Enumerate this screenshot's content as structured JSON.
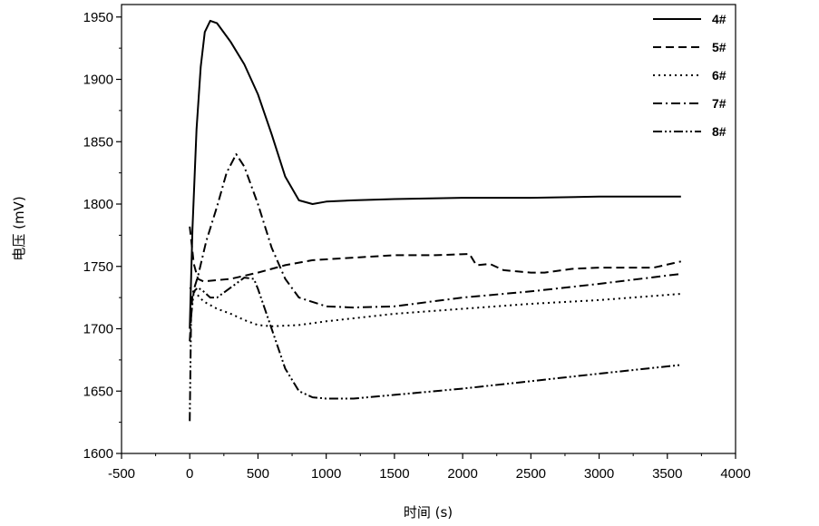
{
  "chart_data": {
    "type": "line",
    "xlabel": "时间 (s)",
    "ylabel": "电压 (mV)",
    "xlim": [
      -500,
      4000
    ],
    "ylim": [
      1600,
      1960
    ],
    "x_ticks": [
      -500,
      0,
      500,
      1000,
      1500,
      2000,
      2500,
      3000,
      3500,
      4000
    ],
    "y_ticks": [
      1600,
      1650,
      1700,
      1750,
      1800,
      1850,
      1900,
      1950
    ],
    "grid": false,
    "legend_position": "top-right",
    "series": [
      {
        "name": "4#",
        "dash": "solid",
        "points": [
          [
            0,
            1700
          ],
          [
            20,
            1780
          ],
          [
            50,
            1860
          ],
          [
            80,
            1910
          ],
          [
            110,
            1938
          ],
          [
            150,
            1947
          ],
          [
            200,
            1945
          ],
          [
            300,
            1930
          ],
          [
            400,
            1912
          ],
          [
            500,
            1888
          ],
          [
            600,
            1856
          ],
          [
            700,
            1822
          ],
          [
            800,
            1803
          ],
          [
            900,
            1800
          ],
          [
            1000,
            1802
          ],
          [
            1200,
            1803
          ],
          [
            1500,
            1804
          ],
          [
            2000,
            1805
          ],
          [
            2500,
            1805
          ],
          [
            3000,
            1806
          ],
          [
            3600,
            1806
          ]
        ]
      },
      {
        "name": "5#",
        "dash": "dash",
        "points": [
          [
            0,
            1782
          ],
          [
            30,
            1752
          ],
          [
            60,
            1740
          ],
          [
            100,
            1738
          ],
          [
            200,
            1739
          ],
          [
            300,
            1740
          ],
          [
            500,
            1745
          ],
          [
            700,
            1751
          ],
          [
            900,
            1755
          ],
          [
            1200,
            1757
          ],
          [
            1500,
            1759
          ],
          [
            1800,
            1759
          ],
          [
            2050,
            1760
          ],
          [
            2100,
            1751
          ],
          [
            2200,
            1752
          ],
          [
            2300,
            1747
          ],
          [
            2400,
            1746
          ],
          [
            2500,
            1745
          ],
          [
            2600,
            1745
          ],
          [
            2800,
            1748
          ],
          [
            3000,
            1749
          ],
          [
            3200,
            1749
          ],
          [
            3400,
            1749
          ],
          [
            3600,
            1754
          ]
        ]
      },
      {
        "name": "6#",
        "dash": "dot",
        "points": [
          [
            0,
            1733
          ],
          [
            50,
            1728
          ],
          [
            100,
            1722
          ],
          [
            200,
            1716
          ],
          [
            300,
            1712
          ],
          [
            400,
            1707
          ],
          [
            500,
            1703
          ],
          [
            600,
            1702
          ],
          [
            800,
            1703
          ],
          [
            1000,
            1706
          ],
          [
            1500,
            1712
          ],
          [
            2000,
            1716
          ],
          [
            2500,
            1720
          ],
          [
            3000,
            1723
          ],
          [
            3600,
            1728
          ]
        ]
      },
      {
        "name": "7#",
        "dash": "dashdot",
        "points": [
          [
            0,
            1690
          ],
          [
            20,
            1728
          ],
          [
            60,
            1742
          ],
          [
            120,
            1770
          ],
          [
            200,
            1798
          ],
          [
            270,
            1825
          ],
          [
            340,
            1840
          ],
          [
            400,
            1830
          ],
          [
            500,
            1800
          ],
          [
            600,
            1765
          ],
          [
            700,
            1740
          ],
          [
            800,
            1725
          ],
          [
            1000,
            1718
          ],
          [
            1200,
            1717
          ],
          [
            1500,
            1718
          ],
          [
            2000,
            1725
          ],
          [
            2500,
            1730
          ],
          [
            3000,
            1736
          ],
          [
            3600,
            1744
          ]
        ]
      },
      {
        "name": "8#",
        "dash": "dashdotdot",
        "points": [
          [
            0,
            1626
          ],
          [
            10,
            1710
          ],
          [
            30,
            1730
          ],
          [
            60,
            1733
          ],
          [
            100,
            1730
          ],
          [
            150,
            1725
          ],
          [
            200,
            1725
          ],
          [
            300,
            1733
          ],
          [
            400,
            1741
          ],
          [
            470,
            1740
          ],
          [
            500,
            1732
          ],
          [
            600,
            1700
          ],
          [
            700,
            1668
          ],
          [
            800,
            1650
          ],
          [
            900,
            1645
          ],
          [
            1000,
            1644
          ],
          [
            1200,
            1644
          ],
          [
            1500,
            1647
          ],
          [
            2000,
            1652
          ],
          [
            2500,
            1658
          ],
          [
            3000,
            1664
          ],
          [
            3600,
            1671
          ]
        ]
      }
    ]
  }
}
